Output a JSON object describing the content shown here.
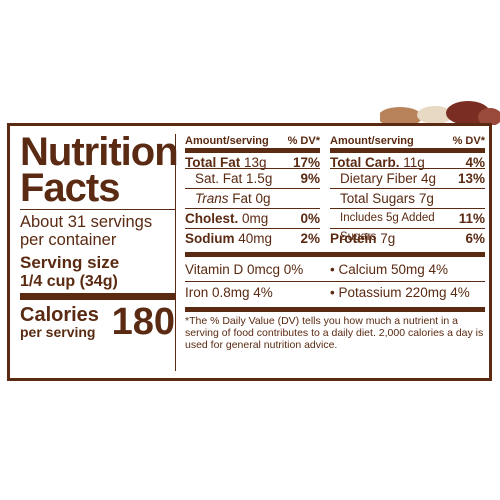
{
  "title_line1": "Nutrition",
  "title_line2": "Facts",
  "servings": "About 31 servings per container",
  "serving_size_label": "Serving size",
  "serving_size_value": "1/4 cup (34g)",
  "calories_label": "Calories",
  "calories_sub": "per serving",
  "calories_value": "180",
  "header": {
    "amount": "Amount/serving",
    "dv": "% DV*"
  },
  "col1": [
    {
      "name": "Total Fat",
      "amt": "13g",
      "dv": "17%"
    },
    {
      "name": "Sat. Fat",
      "amt": "1.5g",
      "dv": "9%"
    },
    {
      "name": "Trans",
      "amt": "Fat 0g",
      "dv": ""
    },
    {
      "name": "Cholest.",
      "amt": "0mg",
      "dv": "0%"
    },
    {
      "name": "Sodium",
      "amt": "40mg",
      "dv": "2%"
    }
  ],
  "col2": [
    {
      "name": "Total Carb.",
      "amt": "11g",
      "dv": "4%"
    },
    {
      "name": "Dietary Fiber",
      "amt": "4g",
      "dv": "13%"
    },
    {
      "name": "Total Sugars",
      "amt": "7g",
      "dv": ""
    },
    {
      "name": "Includes 5g Added Sugars",
      "amt": "",
      "dv": "11%"
    },
    {
      "name": "Protein",
      "amt": "7g",
      "dv": "6%"
    }
  ],
  "vitamins": [
    {
      "left": "Vitamin D 0mcg 0%",
      "right": "•  Calcium 50mg 4%"
    },
    {
      "left": "Iron 0.8mg 4%",
      "right": "•  Potassium 220mg 4%"
    }
  ],
  "footnote": "*The % Daily Value (DV) tells you how much a nutrient in a serving of food contributes to a daily diet. 2,000 calories a day is used for general nutrition advice."
}
